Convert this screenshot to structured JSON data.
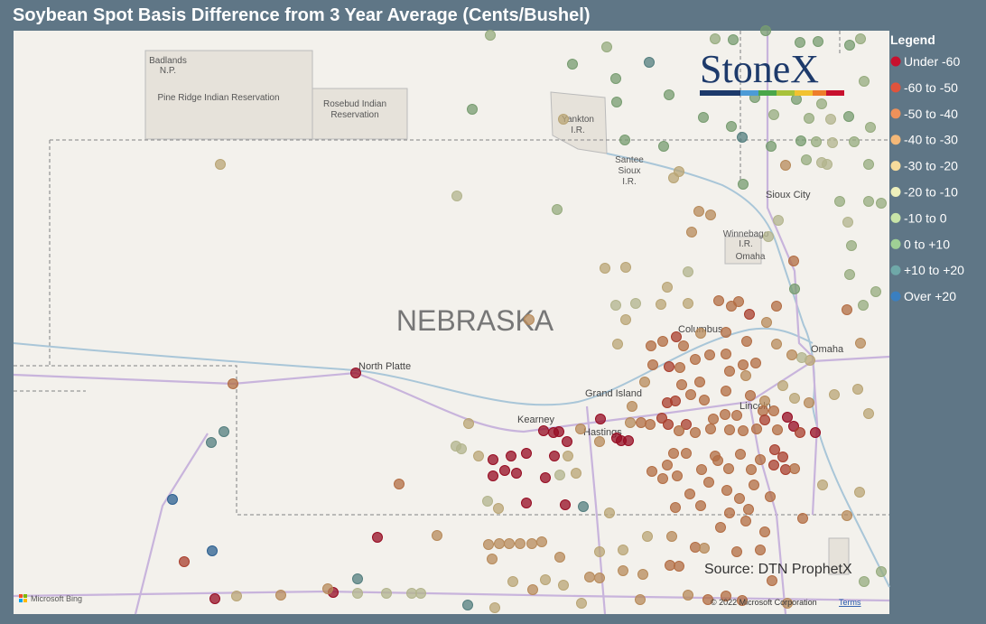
{
  "title": "Soybean Spot Basis Difference from 3 Year Average (Cents/Bushel)",
  "map": {
    "labels": [
      "Badlands",
      "N.P.",
      "Pine Ridge Indian Reservation",
      "Rosebud Indian",
      "Reservation",
      "Yankton",
      "I.R.",
      "Santee",
      "Sioux",
      "I.R.",
      "Sioux City",
      "Winnebago",
      "I.R.",
      "Omaha",
      "NEBRASKA",
      "North Platte",
      "Columbus",
      "Omaha",
      "Grand Island",
      "Lincoln",
      "Kearney",
      "Hastings"
    ]
  },
  "logo": "StoneX",
  "source": "Source: DTN ProphetX",
  "bing": "Microsoft Bing",
  "copyright": "© 2022 Microsoft Corporation",
  "terms": "Terms",
  "legend": {
    "title": "Legend",
    "items": [
      {
        "label": "Under -60",
        "color": "#c8102e"
      },
      {
        "label": "-60 to -50",
        "color": "#e0533c"
      },
      {
        "label": "-50 to -40",
        "color": "#ee915a"
      },
      {
        "label": "-40 to -30",
        "color": "#f4b878"
      },
      {
        "label": "-30 to -20",
        "color": "#f7dc9c"
      },
      {
        "label": "-20 to -10",
        "color": "#eef0bc"
      },
      {
        "label": "-10 to 0",
        "color": "#c8e4a8"
      },
      {
        "label": "0 to +10",
        "color": "#9fd095"
      },
      {
        "label": "+10 to +20",
        "color": "#6fa8a8"
      },
      {
        "label": "Over +20",
        "color": "#3a7fc0"
      }
    ]
  }
}
